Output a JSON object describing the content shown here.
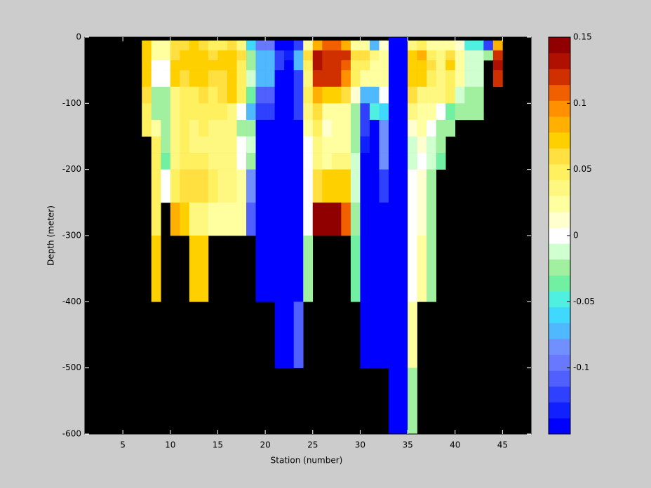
{
  "chart_data": {
    "type": "heatmap",
    "xlabel": "Station (number)",
    "ylabel": "Depth (meter)",
    "xlim": [
      1,
      48
    ],
    "ylim": [
      -600,
      0
    ],
    "xticks": [
      5,
      10,
      15,
      20,
      25,
      30,
      35,
      40,
      45
    ],
    "yticks": [
      -600,
      -500,
      -400,
      -300,
      -200,
      -100,
      0
    ],
    "x": [
      7,
      8,
      9,
      10,
      11,
      12,
      13,
      14,
      15,
      16,
      17,
      18,
      19,
      20,
      21,
      22,
      23,
      24,
      25,
      26,
      27,
      28,
      29,
      30,
      31,
      32,
      33,
      34,
      35,
      36,
      37,
      38,
      39,
      40,
      41,
      42,
      43,
      44,
      45
    ],
    "y": [
      0,
      -5,
      -20,
      -35,
      -50,
      -75,
      -100,
      -125,
      -150,
      -175,
      -200,
      -250,
      -300,
      -400,
      -500,
      -600
    ],
    "z": [
      [
        null,
        0.07,
        0.07,
        0.07,
        0.07,
        0.06,
        0.05,
        0.05,
        null,
        null,
        null,
        null,
        null,
        null,
        null
      ],
      [
        null,
        0.02,
        0.03,
        0,
        0,
        -0.02,
        -0.02,
        0.02,
        0.05,
        0.05,
        0.05,
        0.05,
        0.08,
        null,
        null
      ],
      [
        null,
        0.03,
        0.02,
        0,
        0,
        -0.03,
        -0.03,
        -0.02,
        -0.03,
        -0.04,
        0,
        null,
        null,
        null,
        null
      ],
      [
        null,
        0.06,
        0.06,
        0.07,
        0.07,
        0.04,
        0.04,
        0.04,
        0.04,
        0.04,
        0.05,
        0.09,
        null,
        null,
        null
      ],
      [
        null,
        0.06,
        0.07,
        0.07,
        0.06,
        0.05,
        0.05,
        0.05,
        0.05,
        0.05,
        0.06,
        0.07,
        null,
        null,
        null
      ],
      [
        null,
        0.07,
        0.07,
        0.07,
        0.07,
        0.05,
        0.05,
        0.04,
        0.04,
        0.05,
        0.06,
        0.04,
        0.07,
        null,
        null
      ],
      [
        null,
        0.06,
        0.07,
        0.07,
        0.07,
        0.06,
        0.05,
        0.05,
        0.04,
        0.05,
        0.06,
        0.04,
        0.07,
        null,
        null
      ],
      [
        null,
        0.05,
        0.06,
        0.07,
        0.06,
        0.05,
        0.05,
        0.04,
        0.04,
        0.04,
        0.05,
        0.03,
        null,
        null,
        null
      ],
      [
        null,
        0.05,
        0.07,
        0.07,
        0.06,
        0.06,
        0.05,
        0.04,
        0.04,
        0.04,
        0.04,
        0.03,
        null,
        null,
        null
      ],
      [
        null,
        0.06,
        0.08,
        0.07,
        0.07,
        0.07,
        0.04,
        0.04,
        0.04,
        0.04,
        0.04,
        0.03,
        null,
        null,
        null
      ],
      [
        null,
        0.04,
        0.06,
        0.05,
        0.05,
        0.05,
        0,
        -0.03,
        0,
        0,
        0.03,
        0.03,
        null,
        null,
        null
      ],
      [
        null,
        -0.06,
        -0.02,
        -0.02,
        -0.01,
        -0.04,
        -0.07,
        -0.03,
        -0.01,
        -0.03,
        -0.09,
        -0.11,
        null,
        null,
        null
      ],
      [
        null,
        -0.1,
        -0.07,
        -0.07,
        -0.07,
        -0.11,
        -0.12,
        -0.15,
        -0.15,
        -0.15,
        -0.15,
        -0.15,
        -0.15,
        null,
        null
      ],
      [
        null,
        -0.1,
        -0.07,
        -0.07,
        -0.07,
        -0.11,
        -0.12,
        -0.15,
        -0.15,
        -0.15,
        -0.15,
        -0.15,
        -0.15,
        null,
        null
      ],
      [
        null,
        -0.15,
        -0.12,
        -0.12,
        -0.15,
        -0.15,
        -0.15,
        -0.15,
        -0.15,
        -0.15,
        -0.15,
        -0.15,
        -0.15,
        -0.15,
        null
      ],
      [
        null,
        -0.15,
        -0.14,
        -0.15,
        -0.15,
        -0.15,
        -0.15,
        -0.15,
        -0.15,
        -0.15,
        -0.15,
        -0.15,
        -0.15,
        -0.15,
        null
      ],
      [
        null,
        -0.12,
        -0.08,
        -0.08,
        -0.12,
        -0.12,
        -0.13,
        -0.15,
        -0.15,
        -0.15,
        -0.15,
        -0.15,
        -0.15,
        -0.11,
        null
      ],
      [
        null,
        0.02,
        0.06,
        0.05,
        0.04,
        0.05,
        0.04,
        0.03,
        0,
        0,
        0,
        0,
        -0.03,
        null,
        null
      ],
      [
        null,
        0.09,
        0.14,
        0.14,
        0.13,
        0.09,
        0.06,
        0.05,
        0.04,
        0.04,
        0.06,
        0.15,
        null,
        null,
        null
      ],
      [
        null,
        0.11,
        0.13,
        0.13,
        0.12,
        0.07,
        0.03,
        0.01,
        0.02,
        0.03,
        0.08,
        0.15,
        null,
        null,
        null
      ],
      [
        null,
        0.11,
        0.13,
        0.13,
        0.12,
        0.07,
        0.03,
        0.02,
        0.03,
        0.04,
        0.08,
        0.15,
        null,
        null,
        null
      ],
      [
        null,
        0.09,
        0.12,
        0.11,
        0.1,
        0.06,
        0.03,
        0.03,
        0.03,
        0.04,
        0.08,
        0.11,
        null,
        null,
        null
      ],
      [
        null,
        0.02,
        0.06,
        0.05,
        0.05,
        0.01,
        -0.03,
        -0.03,
        -0.02,
        -0.01,
        -0.01,
        -0.02,
        -0.04,
        null,
        null
      ],
      [
        null,
        0.03,
        0.06,
        0.05,
        0.03,
        -0.08,
        -0.13,
        -0.13,
        -0.14,
        -0.15,
        -0.15,
        -0.15,
        -0.15,
        -0.15,
        null
      ],
      [
        null,
        -0.08,
        0.04,
        0.03,
        0.02,
        -0.07,
        -0.05,
        -0.15,
        -0.15,
        -0.15,
        -0.15,
        -0.15,
        -0.15,
        -0.15,
        null
      ],
      [
        null,
        0.01,
        0.03,
        0.03,
        0.02,
        0,
        -0.06,
        -0.09,
        -0.09,
        -0.09,
        -0.12,
        -0.15,
        -0.15,
        -0.15,
        null
      ],
      [
        -0.15,
        -0.15,
        -0.15,
        -0.15,
        -0.15,
        -0.15,
        -0.15,
        -0.15,
        -0.15,
        -0.15,
        -0.15,
        -0.15,
        -0.15,
        -0.15,
        -0.15
      ],
      [
        -0.15,
        -0.15,
        -0.15,
        -0.15,
        -0.15,
        -0.15,
        -0.15,
        -0.15,
        -0.15,
        -0.15,
        -0.15,
        -0.15,
        -0.15,
        -0.15,
        -0.15
      ],
      [
        null,
        0.04,
        0.08,
        0.08,
        0.07,
        0.06,
        0.04,
        0.01,
        -0.01,
        -0.01,
        0,
        0,
        0,
        0.02,
        -0.02
      ],
      [
        null,
        0.05,
        0.09,
        0.08,
        0.07,
        0.04,
        0.03,
        0.03,
        0.01,
        0,
        0.01,
        0.01,
        0.02,
        null,
        null
      ],
      [
        null,
        0.03,
        0.05,
        0.06,
        0.05,
        0.04,
        0.03,
        0,
        -0.01,
        -0.01,
        -0.02,
        -0.02,
        -0.02,
        null,
        null
      ],
      [
        null,
        0.02,
        0.04,
        0.04,
        0.04,
        0.04,
        0,
        -0.03,
        -0.03,
        -0.04,
        null,
        null,
        null,
        null,
        null
      ],
      [
        null,
        0.03,
        0.06,
        0.07,
        0.05,
        0.05,
        -0.04,
        -0.03,
        null,
        null,
        null,
        null,
        null,
        null,
        null
      ],
      [
        null,
        0.01,
        0.02,
        0.03,
        0.03,
        -0.01,
        -0.03,
        null,
        null,
        null,
        null,
        null,
        null,
        null,
        null
      ],
      [
        null,
        -0.05,
        -0.01,
        -0.01,
        -0.01,
        -0.02,
        -0.02,
        null,
        null,
        null,
        null,
        null,
        null,
        null,
        null
      ],
      [
        null,
        -0.05,
        -0.01,
        -0.01,
        -0.01,
        -0.02,
        -0.02,
        null,
        null,
        null,
        null,
        null,
        null,
        null,
        null
      ],
      [
        null,
        -0.13,
        -0.03,
        null,
        null,
        null,
        null,
        null,
        null,
        null,
        null,
        null,
        null,
        null,
        null
      ],
      [
        null,
        0.09,
        0.13,
        0.14,
        0.13,
        null,
        null,
        null,
        null,
        null,
        null,
        null,
        null,
        null,
        null
      ]
    ],
    "clim": [
      -0.15,
      0.15
    ],
    "cticks": [
      -0.1,
      -0.05,
      0,
      0.05,
      0.1,
      0.15
    ],
    "colormap": [
      "#0000ff",
      "#1020ff",
      "#3040ff",
      "#5060ff",
      "#6878ff",
      "#7090ff",
      "#50b8ff",
      "#40d8ff",
      "#50f0e0",
      "#70f0a0",
      "#a0f0a0",
      "#d0ffd0",
      "#ffffff",
      "#ffffd0",
      "#ffffa0",
      "#fff880",
      "#fff060",
      "#ffe040",
      "#ffd000",
      "#ffb000",
      "#ff9000",
      "#f06000",
      "#d03000",
      "#b01000",
      "#900000"
    ],
    "background": "#000000"
  }
}
